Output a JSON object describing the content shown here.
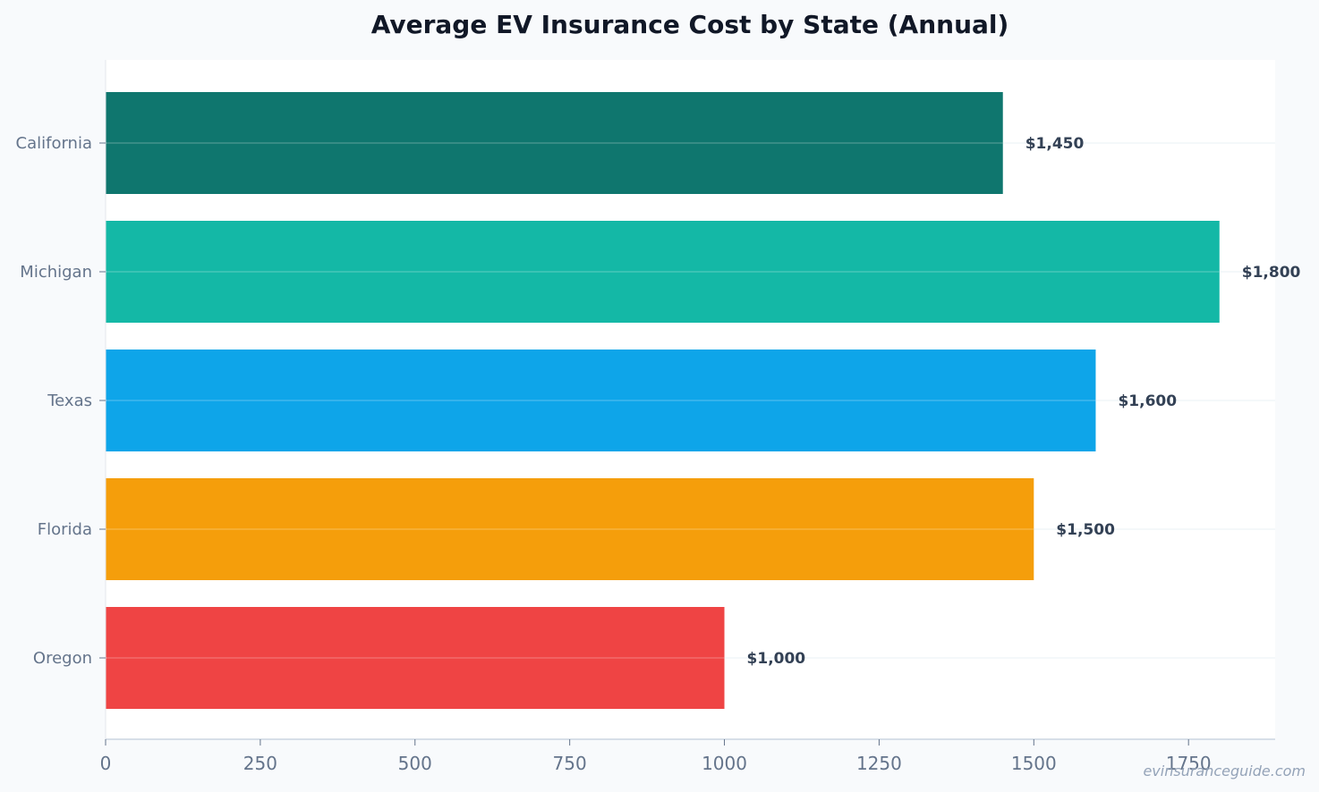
{
  "watermark": "evinsuranceguide.com",
  "colors": {
    "page_background": "#f8fafc",
    "plot_background": "#ffffff",
    "axis": "#cbd5e1",
    "tick_text": "#64748b",
    "data_label_text": "#334155",
    "title_text": "#111827"
  },
  "chart_data": {
    "type": "bar",
    "orientation": "horizontal",
    "title": "Average EV Insurance Cost by State (Annual)",
    "xlabel": "",
    "ylabel": "",
    "categories": [
      "California",
      "Michigan",
      "Texas",
      "Florida",
      "Oregon"
    ],
    "values": [
      1450,
      1800,
      1600,
      1500,
      1000
    ],
    "data_labels": [
      "$1,450",
      "$1,800",
      "$1,600",
      "$1,500",
      "$1,000"
    ],
    "bar_colors": [
      "#0f766e",
      "#14b8a6",
      "#0ea5e9",
      "#f59e0b",
      "#ef4444"
    ],
    "xlim": [
      0,
      1890
    ],
    "xticks": [
      0,
      250,
      500,
      750,
      1000,
      1250,
      1500,
      1750
    ],
    "xtick_labels": [
      "0",
      "250",
      "500",
      "750",
      "1000",
      "1250",
      "1500",
      "1750"
    ],
    "grid": "horizontal lines at each category",
    "legend": "none"
  }
}
